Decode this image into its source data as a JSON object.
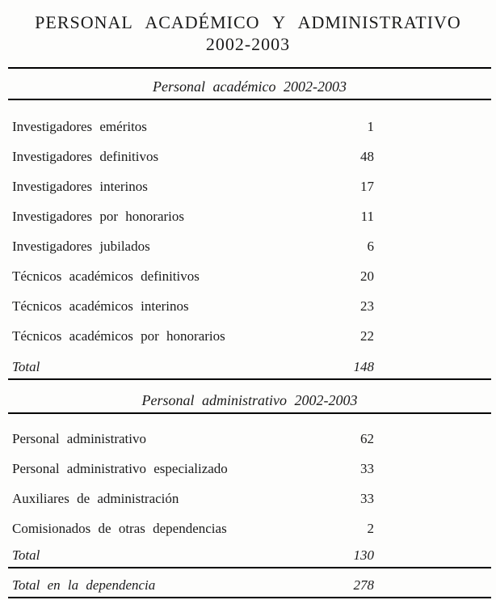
{
  "document": {
    "title_line1": "PERSONAL ACADÉMICO Y ADMINISTRATIVO",
    "title_line2": "2002-2003"
  },
  "academic": {
    "header": "Personal académico 2002-2003",
    "rows": [
      {
        "label": "Investigadores eméritos",
        "value": "1"
      },
      {
        "label": "Investigadores definitivos",
        "value": "48"
      },
      {
        "label": "Investigadores interinos",
        "value": "17"
      },
      {
        "label": "Investigadores por honorarios",
        "value": "11"
      },
      {
        "label": "Investigadores jubilados",
        "value": "6"
      },
      {
        "label": "Técnicos académicos definitivos",
        "value": "20"
      },
      {
        "label": "Técnicos académicos interinos",
        "value": "23"
      },
      {
        "label": "Técnicos académicos por honorarios",
        "value": "22"
      }
    ],
    "total_label": "Total",
    "total_value": "148"
  },
  "administrative": {
    "header": "Personal administrativo 2002-2003",
    "rows": [
      {
        "label": "Personal administrativo",
        "value": "62"
      },
      {
        "label": "Personal administrativo especializado",
        "value": "33"
      },
      {
        "label": "Auxiliares de administración",
        "value": "33"
      },
      {
        "label": "Comisionados de otras dependencias",
        "value": "2"
      }
    ],
    "total_label": "Total",
    "total_value": "130"
  },
  "grand_total": {
    "label": "Total en la dependencia",
    "value": "278"
  },
  "colors": {
    "background": "#fdfdfc",
    "text": "#1b1b1b",
    "rule": "#000000"
  }
}
